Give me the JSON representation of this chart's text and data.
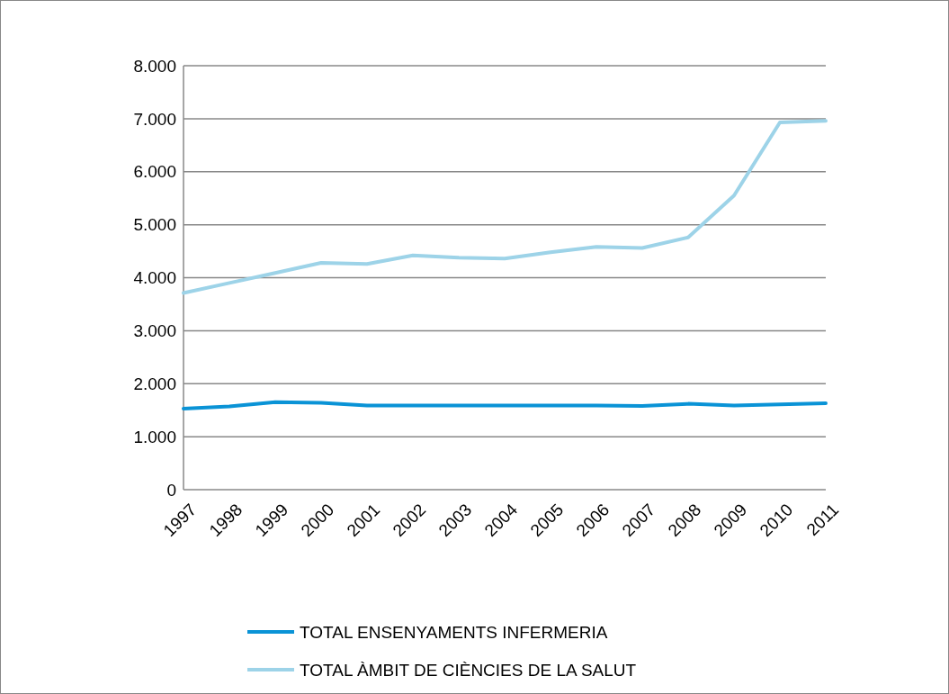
{
  "chart_data": {
    "type": "line",
    "categories": [
      "1997",
      "1998",
      "1999",
      "2000",
      "2001",
      "2002",
      "2003",
      "2004",
      "2005",
      "2006",
      "2007",
      "2008",
      "2009",
      "2010",
      "2011"
    ],
    "series": [
      {
        "name": "TOTAL ENSENYAMENTS INFERMERIA",
        "color": "#0a93d6",
        "values": [
          1530,
          1570,
          1650,
          1640,
          1590,
          1590,
          1590,
          1590,
          1590,
          1590,
          1580,
          1620,
          1590,
          1610,
          1630
        ]
      },
      {
        "name": "TOTAL ÀMBIT DE CIÈNCIES DE LA SALUT",
        "color": "#9dd3e8",
        "values": [
          3710,
          3900,
          4090,
          4280,
          4260,
          4420,
          4380,
          4360,
          4480,
          4580,
          4560,
          4760,
          5550,
          6930,
          6960
        ]
      }
    ],
    "ylim": [
      0,
      8000
    ],
    "yticks": [
      {
        "value": 0,
        "label": "0"
      },
      {
        "value": 1000,
        "label": "1.000"
      },
      {
        "value": 2000,
        "label": "2.000"
      },
      {
        "value": 3000,
        "label": "3.000"
      },
      {
        "value": 4000,
        "label": "4.000"
      },
      {
        "value": 5000,
        "label": "5.000"
      },
      {
        "value": 6000,
        "label": "6.000"
      },
      {
        "value": 7000,
        "label": "7.000"
      },
      {
        "value": 8000,
        "label": "8.000"
      }
    ],
    "grid": "y",
    "legend": "bottom",
    "marker": "none",
    "line_style": "solid"
  }
}
